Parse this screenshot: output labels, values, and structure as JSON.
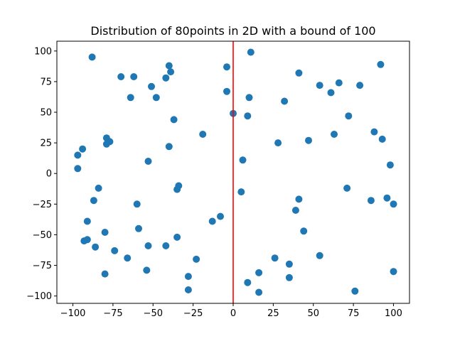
{
  "chart_data": {
    "type": "scatter",
    "title": "Distribution of 80points in 2D with a bound of 100",
    "xlabel": "",
    "ylabel": "",
    "xlim": [
      -110,
      110
    ],
    "ylim": [
      -106,
      108
    ],
    "xticks": [
      -100,
      -75,
      -50,
      -25,
      0,
      25,
      50,
      75,
      100
    ],
    "yticks": [
      -100,
      -75,
      -50,
      -25,
      0,
      25,
      50,
      75,
      100
    ],
    "grid": false,
    "point_color": "#1f77b4",
    "vline": {
      "x": 0,
      "color": "#ff0000"
    },
    "points": [
      [
        -88,
        95
      ],
      [
        -70,
        79
      ],
      [
        -62,
        79
      ],
      [
        -40,
        88
      ],
      [
        -39,
        83
      ],
      [
        -42,
        78
      ],
      [
        -51,
        71
      ],
      [
        -64,
        62
      ],
      [
        -48,
        62
      ],
      [
        -37,
        44
      ],
      [
        -4,
        87
      ],
      [
        -4,
        67
      ],
      [
        11,
        99
      ],
      [
        10,
        62
      ],
      [
        0,
        49
      ],
      [
        9,
        47
      ],
      [
        -19,
        32
      ],
      [
        -79,
        29
      ],
      [
        -77,
        26
      ],
      [
        -79,
        24
      ],
      [
        -40,
        22
      ],
      [
        -94,
        20
      ],
      [
        -97,
        15
      ],
      [
        -53,
        10
      ],
      [
        -97,
        4
      ],
      [
        6,
        11
      ],
      [
        -34,
        -10
      ],
      [
        -35,
        -13
      ],
      [
        -84,
        -12
      ],
      [
        -87,
        -22
      ],
      [
        -60,
        -25
      ],
      [
        -91,
        -39
      ],
      [
        -59,
        -45
      ],
      [
        -80,
        -48
      ],
      [
        -35,
        -52
      ],
      [
        -8,
        -35
      ],
      [
        -13,
        -39
      ],
      [
        -93,
        -55
      ],
      [
        -91,
        -54
      ],
      [
        -86,
        -60
      ],
      [
        -74,
        -63
      ],
      [
        -53,
        -59
      ],
      [
        -42,
        -59
      ],
      [
        -66,
        -69
      ],
      [
        -23,
        -70
      ],
      [
        -54,
        -79
      ],
      [
        -80,
        -82
      ],
      [
        -28,
        -84
      ],
      [
        -28,
        -95
      ],
      [
        5,
        -15
      ],
      [
        9,
        -89
      ],
      [
        16,
        -97
      ],
      [
        16,
        -81
      ],
      [
        26,
        -69
      ],
      [
        35,
        -74
      ],
      [
        35,
        -85
      ],
      [
        39,
        -30
      ],
      [
        41,
        -21
      ],
      [
        44,
        -47
      ],
      [
        54,
        -67
      ],
      [
        76,
        -96
      ],
      [
        100,
        -80
      ],
      [
        86,
        -22
      ],
      [
        96,
        -20
      ],
      [
        100,
        -25
      ],
      [
        71,
        -12
      ],
      [
        98,
        7
      ],
      [
        93,
        28
      ],
      [
        88,
        34
      ],
      [
        63,
        32
      ],
      [
        47,
        27
      ],
      [
        28,
        25
      ],
      [
        32,
        59
      ],
      [
        41,
        82
      ],
      [
        54,
        72
      ],
      [
        61,
        66
      ],
      [
        66,
        74
      ],
      [
        72,
        47
      ],
      [
        79,
        72
      ],
      [
        92,
        89
      ]
    ]
  }
}
